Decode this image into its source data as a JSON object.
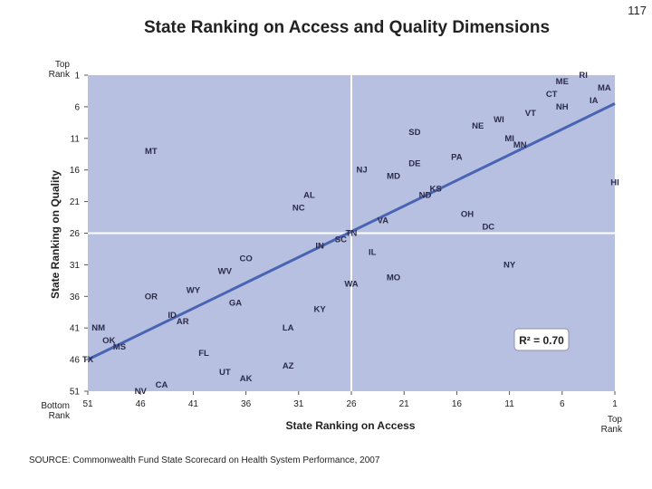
{
  "page_number": "117",
  "source": "SOURCE: Commonwealth Fund State Scorecard on Health System Performance, 2007",
  "colors": {
    "plot_bg": "#b7c0e0",
    "trend_line": "#4a64b4",
    "crosshair": "#ffffff",
    "label_text": "#2b2b4a"
  },
  "chart_data": {
    "type": "scatter",
    "title": "State Ranking on Access and Quality Dimensions",
    "xlabel": "State Ranking on Access",
    "ylabel": "State Ranking on Quality",
    "x_ends": {
      "low": "Bottom Rank",
      "high": "Top Rank"
    },
    "y_ends": {
      "low": "Bottom Rank",
      "high": "Top Rank"
    },
    "x_reversed": true,
    "y_reversed": true,
    "xlim": [
      51,
      1
    ],
    "ylim": [
      1,
      51
    ],
    "xticks": [
      51,
      46,
      41,
      36,
      31,
      26,
      21,
      16,
      11,
      6,
      1
    ],
    "yticks": [
      1,
      6,
      11,
      16,
      21,
      26,
      31,
      36,
      41,
      46,
      51
    ],
    "crosshair": {
      "x": 26,
      "y": 26
    },
    "trend_line": {
      "x": [
        51,
        1
      ],
      "y": [
        46,
        5.5
      ]
    },
    "annotation": "R² = 0.70",
    "points": [
      {
        "label": "RI",
        "x": 4,
        "y": 1
      },
      {
        "label": "ME",
        "x": 6,
        "y": 2
      },
      {
        "label": "MA",
        "x": 2,
        "y": 3
      },
      {
        "label": "CT",
        "x": 7,
        "y": 4
      },
      {
        "label": "IA",
        "x": 3,
        "y": 5
      },
      {
        "label": "NH",
        "x": 6,
        "y": 6
      },
      {
        "label": "VT",
        "x": 9,
        "y": 7
      },
      {
        "label": "WI",
        "x": 12,
        "y": 8
      },
      {
        "label": "NE",
        "x": 14,
        "y": 9
      },
      {
        "label": "SD",
        "x": 20,
        "y": 10
      },
      {
        "label": "MI",
        "x": 11,
        "y": 11
      },
      {
        "label": "MN",
        "x": 10,
        "y": 12
      },
      {
        "label": "MT",
        "x": 45,
        "y": 13
      },
      {
        "label": "PA",
        "x": 16,
        "y": 14
      },
      {
        "label": "DE",
        "x": 20,
        "y": 15
      },
      {
        "label": "NJ",
        "x": 25,
        "y": 16
      },
      {
        "label": "MD",
        "x": 22,
        "y": 17
      },
      {
        "label": "HI",
        "x": 1,
        "y": 18
      },
      {
        "label": "KS",
        "x": 18,
        "y": 19
      },
      {
        "label": "ND",
        "x": 19,
        "y": 20
      },
      {
        "label": "AL",
        "x": 30,
        "y": 20
      },
      {
        "label": "NC",
        "x": 31,
        "y": 22
      },
      {
        "label": "OH",
        "x": 15,
        "y": 23
      },
      {
        "label": "VA",
        "x": 23,
        "y": 24
      },
      {
        "label": "DC",
        "x": 13,
        "y": 25
      },
      {
        "label": "TN",
        "x": 26,
        "y": 26
      },
      {
        "label": "SC",
        "x": 27,
        "y": 27
      },
      {
        "label": "IN",
        "x": 29,
        "y": 28
      },
      {
        "label": "IL",
        "x": 24,
        "y": 29
      },
      {
        "label": "CO",
        "x": 36,
        "y": 30
      },
      {
        "label": "NY",
        "x": 11,
        "y": 31
      },
      {
        "label": "WV",
        "x": 38,
        "y": 32
      },
      {
        "label": "MO",
        "x": 22,
        "y": 33
      },
      {
        "label": "WA",
        "x": 26,
        "y": 34
      },
      {
        "label": "WY",
        "x": 41,
        "y": 35
      },
      {
        "label": "OR",
        "x": 45,
        "y": 36
      },
      {
        "label": "GA",
        "x": 37,
        "y": 37
      },
      {
        "label": "KY",
        "x": 29,
        "y": 38
      },
      {
        "label": "ID",
        "x": 43,
        "y": 39
      },
      {
        "label": "AR",
        "x": 42,
        "y": 40
      },
      {
        "label": "NM",
        "x": 50,
        "y": 41
      },
      {
        "label": "LA",
        "x": 32,
        "y": 41
      },
      {
        "label": "OK",
        "x": 49,
        "y": 43
      },
      {
        "label": "MS",
        "x": 48,
        "y": 44
      },
      {
        "label": "FL",
        "x": 40,
        "y": 45
      },
      {
        "label": "TX",
        "x": 51,
        "y": 46
      },
      {
        "label": "AZ",
        "x": 32,
        "y": 47
      },
      {
        "label": "UT",
        "x": 38,
        "y": 48
      },
      {
        "label": "AK",
        "x": 36,
        "y": 49
      },
      {
        "label": "CA",
        "x": 44,
        "y": 50
      },
      {
        "label": "NV",
        "x": 46,
        "y": 51
      }
    ]
  }
}
